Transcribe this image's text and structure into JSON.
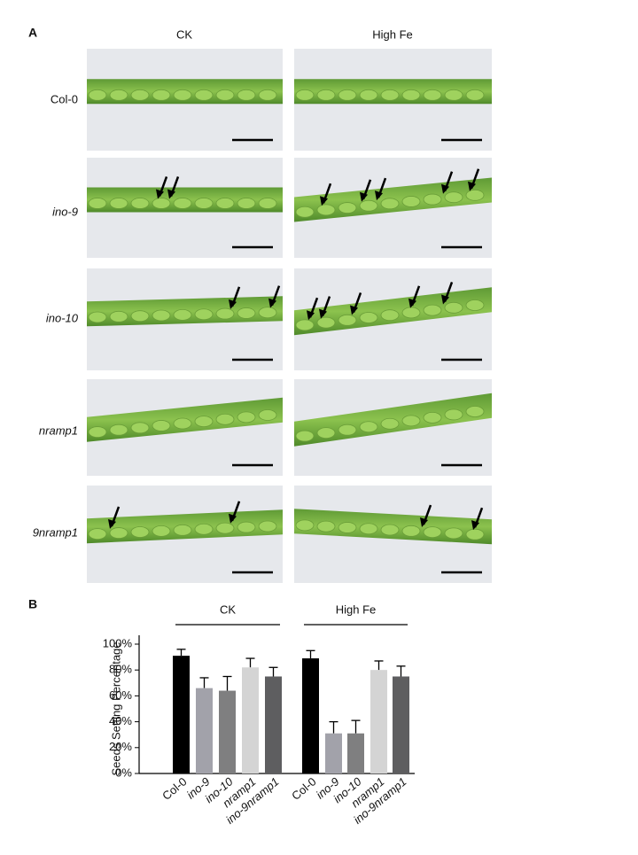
{
  "panels": {
    "a_label": "A",
    "b_label": "B"
  },
  "photo_grid": {
    "columns": [
      "CK",
      "High Fe"
    ],
    "rows": [
      "Col-0",
      "ino-9",
      "ino-10",
      "nramp1",
      "9nramp1"
    ]
  },
  "chart_data": {
    "type": "bar",
    "ylabel": "Seeds Setting Percentage",
    "groups": [
      "CK",
      "High Fe"
    ],
    "categories": [
      "Col-0",
      "ino-9",
      "ino-10",
      "nramp1",
      "ino-9nramp1",
      "Col-0",
      "ino-9",
      "ino-10",
      "nramp1",
      "ino-9nramp1"
    ],
    "values": [
      91,
      66,
      64,
      82,
      75,
      89,
      31,
      31,
      80,
      75
    ],
    "errors": [
      5,
      8,
      11,
      7,
      7,
      6,
      9,
      10,
      7,
      8
    ],
    "colors": [
      "#000000",
      "#a2a2aa",
      "#7f7f80",
      "#d4d4d4",
      "#5e5e60",
      "#000000",
      "#a2a2aa",
      "#7f7f80",
      "#d4d4d4",
      "#5e5e60"
    ],
    "ylim": [
      0,
      100
    ],
    "yticks": [
      {
        "value": 0,
        "label": "0%"
      },
      {
        "value": 20,
        "label": "20%"
      },
      {
        "value": 40,
        "label": "40%"
      },
      {
        "value": 60,
        "label": "60%"
      },
      {
        "value": 80,
        "label": "80%"
      },
      {
        "value": 100,
        "label": "100%"
      }
    ]
  }
}
